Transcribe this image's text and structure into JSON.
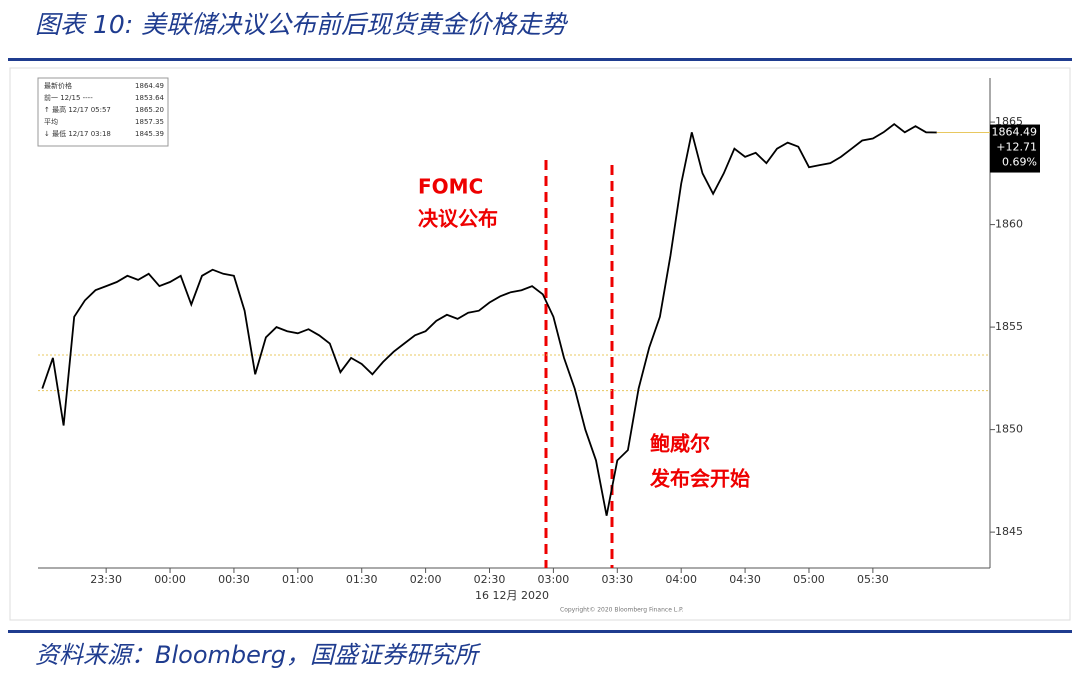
{
  "chart_data": {
    "type": "line",
    "title": "图表 10: 美联储决议公布前后现货黄金价格走势",
    "source": "资料来源：Bloomberg，国盛证券研究所",
    "x": [
      "23:00",
      "23:05",
      "23:10",
      "23:15",
      "23:20",
      "23:25",
      "23:30",
      "23:35",
      "23:40",
      "23:45",
      "23:50",
      "23:55",
      "00:00",
      "00:05",
      "00:10",
      "00:15",
      "00:20",
      "00:25",
      "00:30",
      "00:35",
      "00:40",
      "00:45",
      "00:50",
      "00:55",
      "01:00",
      "01:05",
      "01:10",
      "01:15",
      "01:20",
      "01:25",
      "01:30",
      "01:35",
      "01:40",
      "01:45",
      "01:50",
      "01:55",
      "02:00",
      "02:05",
      "02:10",
      "02:15",
      "02:20",
      "02:25",
      "02:30",
      "02:35",
      "02:40",
      "02:45",
      "02:50",
      "02:55",
      "03:00",
      "03:05",
      "03:10",
      "03:15",
      "03:20",
      "03:25",
      "03:30",
      "03:35",
      "03:40",
      "03:45",
      "03:50",
      "03:55",
      "04:00",
      "04:05",
      "04:10",
      "04:15",
      "04:20",
      "04:25",
      "04:30",
      "04:35",
      "04:40",
      "04:45",
      "04:50",
      "04:55",
      "05:00",
      "05:05",
      "05:10",
      "05:15",
      "05:20",
      "05:25",
      "05:30",
      "05:35",
      "05:40",
      "05:45",
      "05:50",
      "05:55",
      "06:00"
    ],
    "series": [
      {
        "name": "最新价格",
        "color": "#000000",
        "values": [
          1852,
          1853.5,
          1850.2,
          1855.5,
          1856.3,
          1856.8,
          1857,
          1857.2,
          1857.5,
          1857.3,
          1857.6,
          1857,
          1857.2,
          1857.5,
          1856.1,
          1857.5,
          1857.8,
          1857.6,
          1857.5,
          1855.8,
          1852.7,
          1854.5,
          1855,
          1854.8,
          1854.7,
          1854.9,
          1854.6,
          1854.2,
          1852.8,
          1853.5,
          1853.2,
          1852.7,
          1853.3,
          1853.8,
          1854.2,
          1854.6,
          1854.8,
          1855.3,
          1855.6,
          1855.4,
          1855.7,
          1855.8,
          1856.2,
          1856.5,
          1856.7,
          1856.8,
          1857,
          1856.6,
          1855.5,
          1853.5,
          1852,
          1850,
          1848.5,
          1845.8,
          1848.5,
          1849,
          1852,
          1854,
          1855.5,
          1858.5,
          1862,
          1864.5,
          1862.5,
          1861.5,
          1862.5,
          1863.7,
          1863.3,
          1863.5,
          1863,
          1863.7,
          1864,
          1863.8,
          1862.8,
          1862.9,
          1863,
          1863.3,
          1863.7,
          1864.1,
          1864.2,
          1864.5,
          1864.9,
          1864.5,
          1864.8,
          1864.5,
          1864.49
        ]
      }
    ],
    "xlim": [
      "22:58",
      "06:25"
    ],
    "xticks": [
      "23:30",
      "00:00",
      "00:30",
      "01:00",
      "01:30",
      "02:00",
      "02:30",
      "03:00",
      "03:30",
      "04:00",
      "04:30",
      "05:00",
      "05:30"
    ],
    "x_date_label": "16 12月 2020",
    "ylim": [
      1843.25,
      1867.15
    ],
    "yticks": [
      1845,
      1850,
      1855,
      1860,
      1865
    ],
    "reference_lines": [
      1853.64,
      1851.9
    ],
    "legend_box": [
      [
        "最新价格",
        "1864.49"
      ],
      [
        "前一 12/15 ----",
        "1853.64"
      ],
      [
        "↑ 最高 12/17 05:57",
        "1865.20"
      ],
      [
        "平均",
        "1857.35"
      ],
      [
        "↓ 最低 12/17 03:18",
        "1845.39"
      ]
    ],
    "last_tag": [
      "1864.49",
      "+12.71",
      "0.69%"
    ],
    "annotations": [
      "FOMC",
      "决议公布",
      "鲍威尔",
      "发布会开始"
    ],
    "copyright": "Copyright© 2020 Bloomberg Finance L.P."
  }
}
